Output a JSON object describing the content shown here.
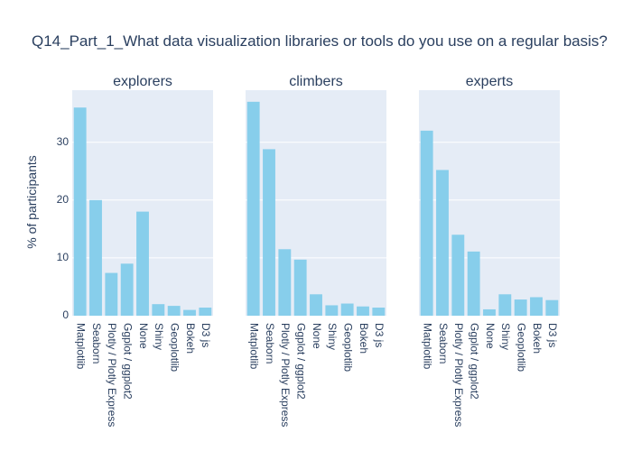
{
  "chart_data": {
    "type": "bar",
    "title": "Q14_Part_1_What data visualization libraries or tools do you use on a regular basis?",
    "ylabel": "% of participants",
    "ylim": [
      0,
      39
    ],
    "yticks": [
      0,
      10,
      20,
      30
    ],
    "bar_color": "#87CEEB",
    "plot_bg": "#E5ECF6",
    "categories": [
      "Matplotlib",
      "Seaborn",
      "Plotly / Plotly Express",
      "Ggplot / ggplot2",
      "None",
      "Shiny",
      "Geoplotlib",
      "Bokeh",
      "D3 js"
    ],
    "panels": [
      {
        "name": "explorers",
        "values": [
          36.0,
          20.0,
          7.4,
          9.0,
          18.0,
          2.0,
          1.7,
          1.0,
          1.4
        ]
      },
      {
        "name": "climbers",
        "values": [
          37.0,
          28.8,
          11.5,
          9.7,
          3.7,
          1.8,
          2.1,
          1.6,
          1.4
        ]
      },
      {
        "name": "experts",
        "values": [
          32.0,
          25.2,
          14.0,
          11.1,
          1.1,
          3.7,
          2.8,
          3.2,
          2.7
        ]
      }
    ]
  }
}
